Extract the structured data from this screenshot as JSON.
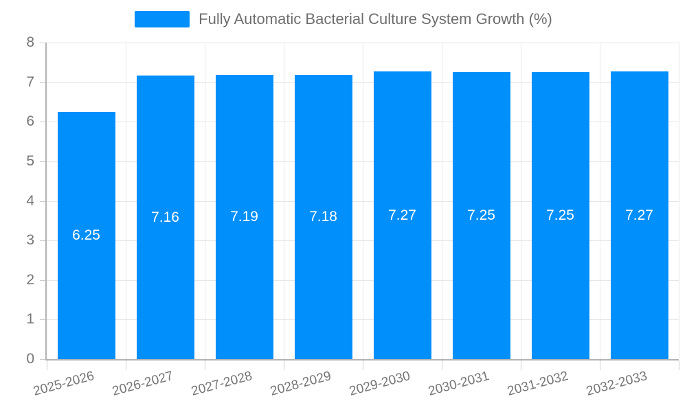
{
  "chart_data": {
    "type": "bar",
    "title": "Fully Automatic Bacterial Culture System Growth (%)",
    "categories": [
      "2025-2026",
      "2026-2027",
      "2027-2028",
      "2028-2029",
      "2029-2030",
      "2030-2031",
      "2031-2032",
      "2032-2033"
    ],
    "series": [
      {
        "name": "Fully Automatic Bacterial Culture System Growth (%)",
        "values": [
          6.25,
          7.16,
          7.19,
          7.18,
          7.27,
          7.25,
          7.25,
          7.27
        ]
      }
    ],
    "bar_value_labels": [
      "6.25",
      "7.16",
      "7.19",
      "7.18",
      "7.27",
      "7.25",
      "7.25",
      "7.27"
    ],
    "xlabel": "",
    "ylabel": "",
    "ylim": [
      0,
      8
    ],
    "ytick_step": 1,
    "ytick_labels": [
      "0",
      "1",
      "2",
      "3",
      "4",
      "5",
      "6",
      "7",
      "8"
    ],
    "grid": true,
    "legend_position": "top",
    "x_label_rotation_deg": -15
  },
  "colors": {
    "bar": "#008ffb",
    "bar_label_text": "#ffffff",
    "axis_label_text": "#757575",
    "legend_text": "#6e6e6e",
    "grid_line": "#e7e7e7",
    "axis_line": "#b3b3b3",
    "tick_mark": "#cccccc",
    "background": "#ffffff"
  }
}
